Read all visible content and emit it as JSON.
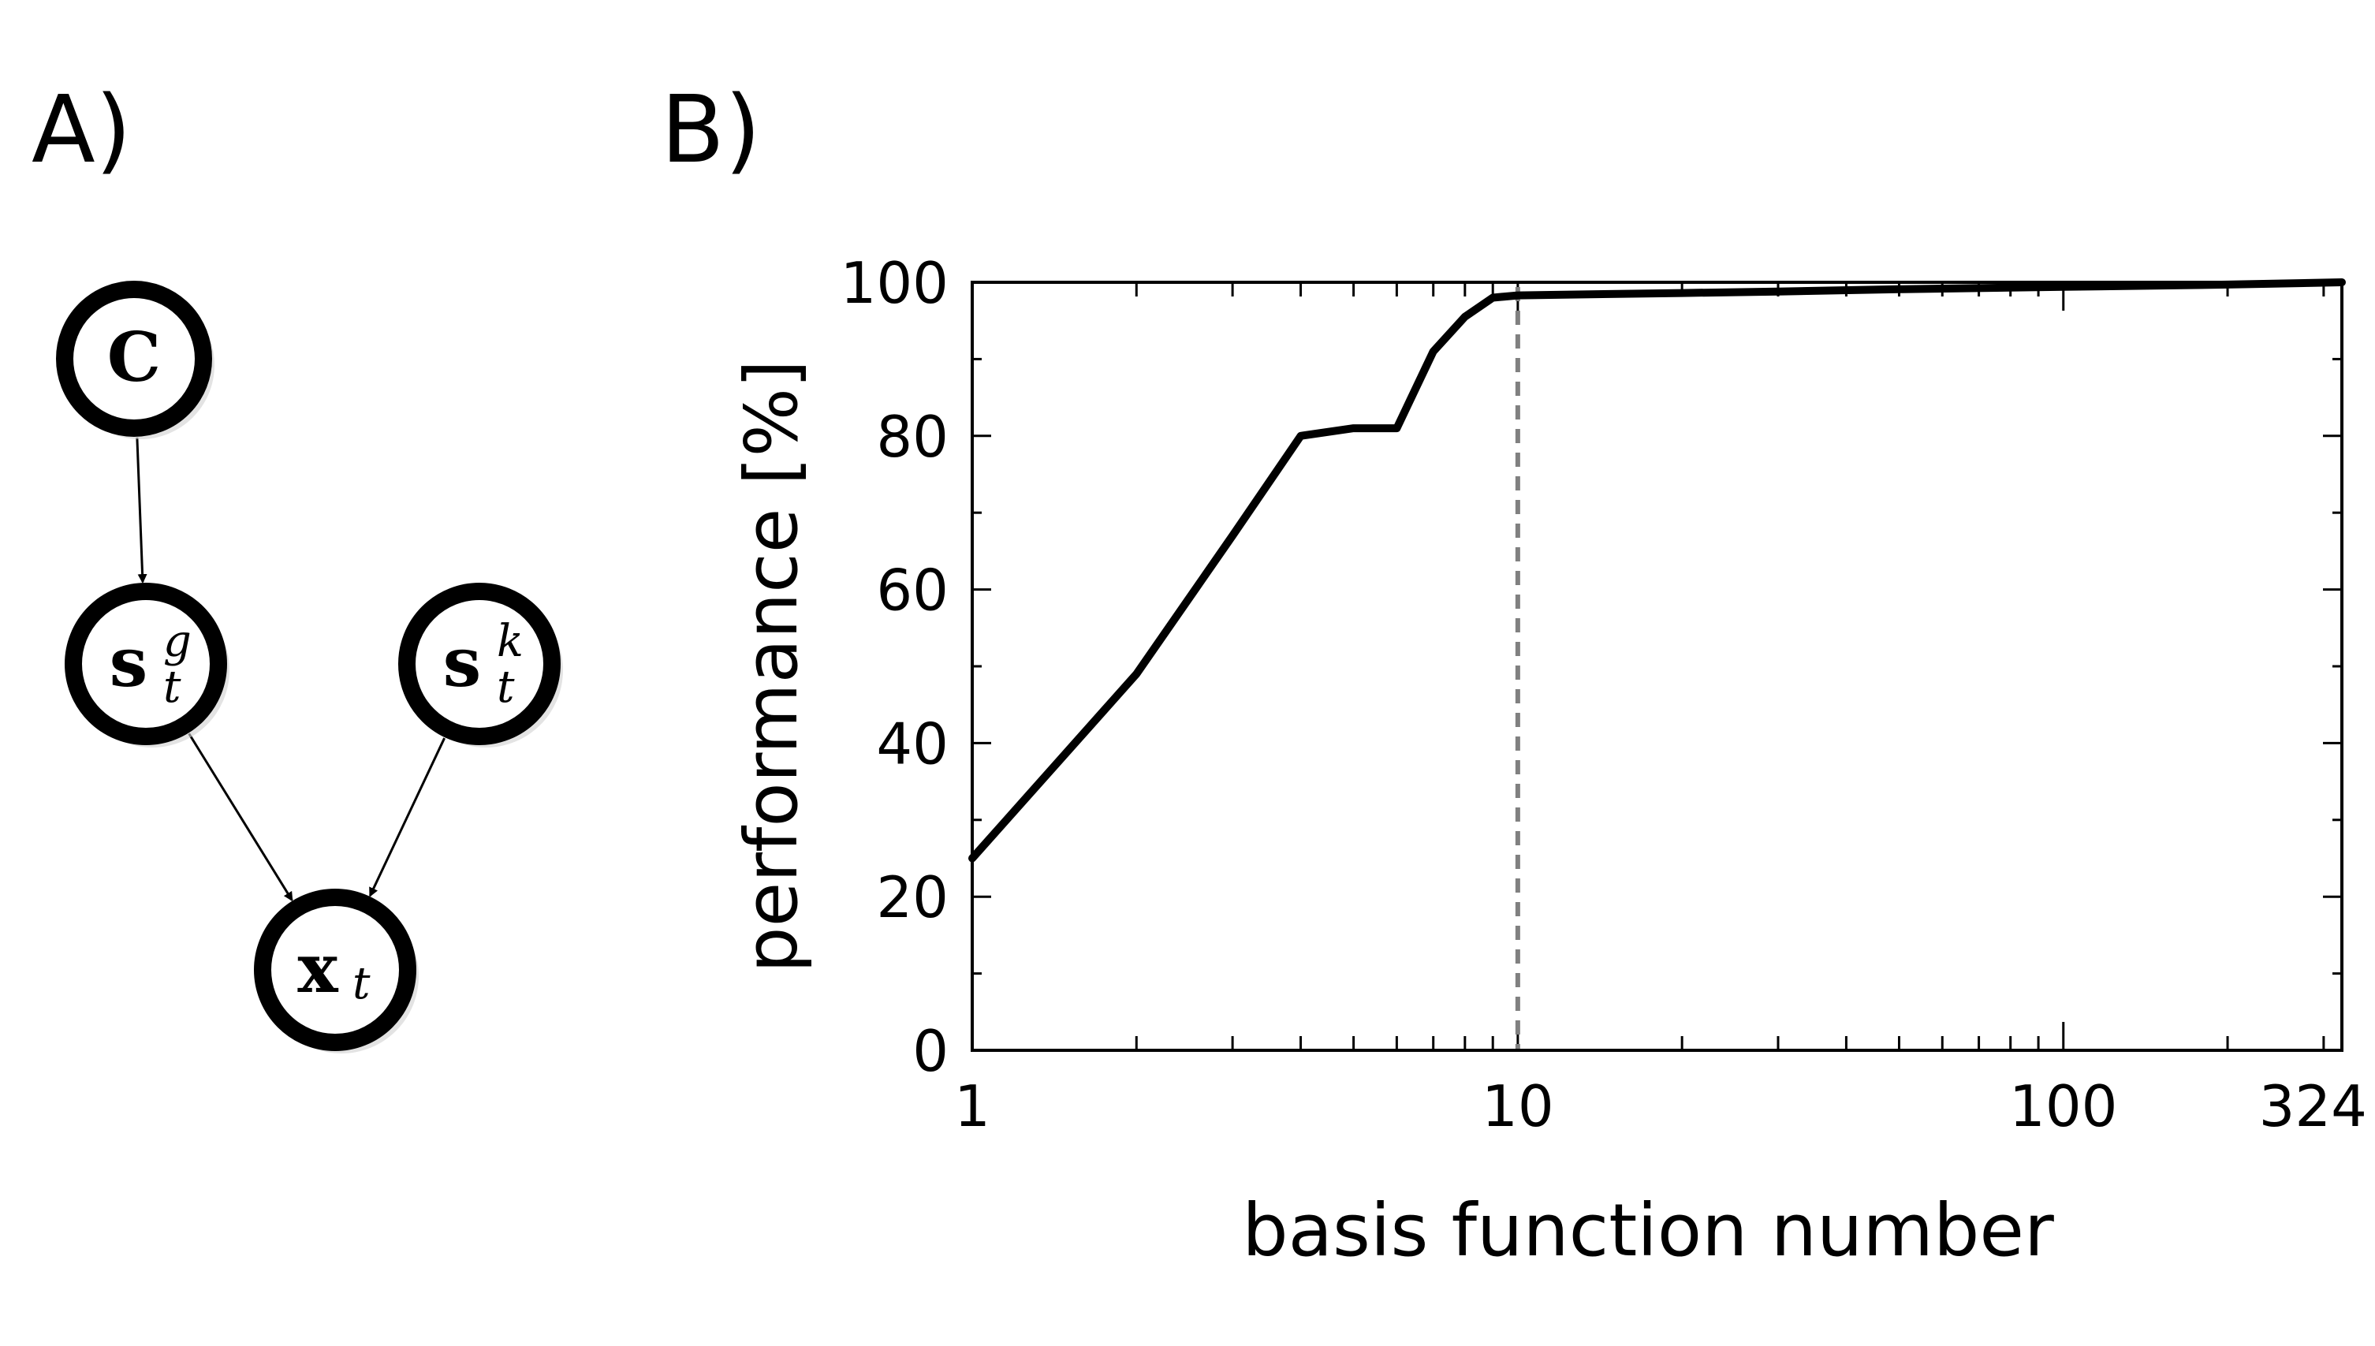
{
  "panels": {
    "a_label": "A)",
    "b_label": "B)"
  },
  "diagram": {
    "nodes": [
      {
        "id": "C",
        "main": "C",
        "sup": "",
        "sub": ""
      },
      {
        "id": "s_t_g",
        "main": "s",
        "sup": "g",
        "sub": "t"
      },
      {
        "id": "s_t_k",
        "main": "s",
        "sup": "k",
        "sub": "t"
      },
      {
        "id": "x_t",
        "main": "x",
        "sup": "",
        "sub": "t"
      }
    ],
    "edges": [
      {
        "from": "C",
        "to": "s_t_g"
      },
      {
        "from": "s_t_g",
        "to": "x_t"
      },
      {
        "from": "s_t_k",
        "to": "x_t"
      }
    ]
  },
  "chart_data": {
    "type": "line",
    "title": "",
    "xlabel": "basis function number",
    "ylabel": "performance [%]",
    "x_scale": "log",
    "xlim": [
      1,
      324
    ],
    "ylim": [
      0,
      100
    ],
    "x_ticks": [
      1,
      10,
      100,
      324
    ],
    "x_tick_labels": [
      "1",
      "10",
      "100",
      "324"
    ],
    "y_ticks": [
      0,
      20,
      40,
      60,
      80,
      100
    ],
    "y_tick_labels": [
      "0",
      "20",
      "40",
      "60",
      "80",
      "100"
    ],
    "y_minor_ticks": [
      10,
      30,
      50,
      70,
      90
    ],
    "grid": false,
    "legend": "none",
    "reference_line": {
      "x": 10,
      "style": "dashed",
      "color": "#808080"
    },
    "series": [
      {
        "color": "#000000",
        "x": [
          1,
          2,
          3,
          4,
          5,
          6,
          7,
          8,
          9,
          10,
          20,
          30,
          50,
          100,
          200,
          324
        ],
        "y": [
          25,
          49,
          67,
          80,
          81,
          81,
          91,
          95.5,
          98,
          98.3,
          98.6,
          98.8,
          99.1,
          99.4,
          99.7,
          100
        ]
      }
    ]
  }
}
